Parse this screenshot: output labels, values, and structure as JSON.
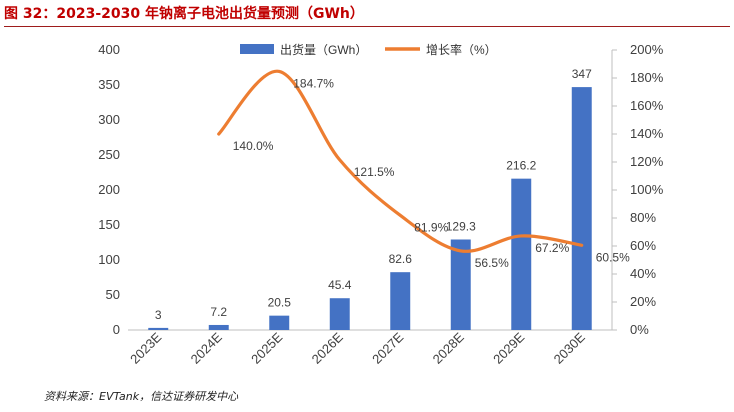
{
  "title": "图 32：2023-2030 年钠离子电池出货量预测（GWh）",
  "source": "资料来源：EVTank，信达证券研发中心",
  "colors": {
    "bar": "#4472C4",
    "line": "#ED7D31",
    "title": "#C00000"
  },
  "chart_data": {
    "type": "bar",
    "categories": [
      "2023E",
      "2024E",
      "2025E",
      "2026E",
      "2027E",
      "2028E",
      "2029E",
      "2030E"
    ],
    "series": [
      {
        "name": "出货量（GWh）",
        "type": "bar",
        "axis": "left",
        "values": [
          3,
          7.2,
          20.5,
          45.4,
          82.6,
          129.3,
          216.2,
          347
        ],
        "labels": [
          "3",
          "7.2",
          "20.5",
          "45.4",
          "82.6",
          "129.3",
          "216.2",
          "347"
        ]
      },
      {
        "name": "增长率（%）",
        "type": "line",
        "axis": "right",
        "values": [
          null,
          140.0,
          184.7,
          121.5,
          81.9,
          56.5,
          67.2,
          60.5
        ],
        "labels": [
          "",
          "140.0%",
          "184.7%",
          "121.5%",
          "81.9%",
          "56.5%",
          "67.2%",
          "60.5%"
        ]
      }
    ],
    "yleft": {
      "min": 0,
      "max": 400,
      "ticks": [
        "0",
        "50",
        "100",
        "150",
        "200",
        "250",
        "300",
        "350",
        "400"
      ]
    },
    "yright": {
      "min": 0,
      "max": 200,
      "ticks": [
        "0%",
        "20%",
        "40%",
        "60%",
        "80%",
        "100%",
        "120%",
        "140%",
        "160%",
        "180%",
        "200%"
      ]
    },
    "legend": "top-center",
    "grid": false
  }
}
